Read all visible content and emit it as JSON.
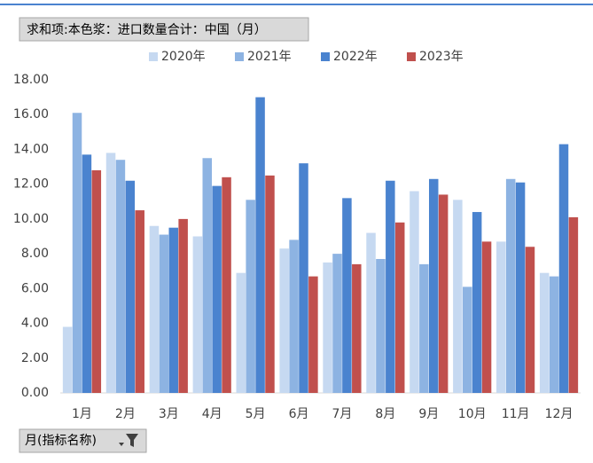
{
  "pivot_buttons": {
    "value_field": "求和项:本色浆：进口数量合计：中国（月）",
    "axis_field": "月(指标名称)"
  },
  "chart_data": {
    "type": "bar",
    "categories": [
      "1月",
      "2月",
      "3月",
      "4月",
      "5月",
      "6月",
      "7月",
      "8月",
      "9月",
      "10月",
      "11月",
      "12月"
    ],
    "series": [
      {
        "name": "2020年",
        "color": "#c6d9f1",
        "values": [
          3.8,
          13.8,
          9.6,
          9.0,
          6.9,
          8.3,
          7.5,
          9.2,
          11.6,
          11.1,
          8.7,
          6.9
        ]
      },
      {
        "name": "2021年",
        "color": "#8db3e2",
        "values": [
          16.1,
          13.4,
          9.1,
          13.5,
          11.1,
          8.8,
          8.0,
          7.7,
          7.4,
          6.1,
          12.3,
          6.7
        ]
      },
      {
        "name": "2022年",
        "color": "#4a83cf",
        "values": [
          13.7,
          12.2,
          9.5,
          11.9,
          17.0,
          13.2,
          11.2,
          12.2,
          12.3,
          10.4,
          12.1,
          14.3
        ]
      },
      {
        "name": "2023年",
        "color": "#c0504d",
        "values": [
          12.8,
          10.5,
          10.0,
          12.4,
          12.5,
          6.7,
          7.4,
          9.8,
          11.4,
          8.7,
          8.4,
          10.1
        ]
      }
    ],
    "ylim": [
      0,
      18
    ],
    "yticks": [
      {
        "value": 0,
        "label": "0.00"
      },
      {
        "value": 2,
        "label": "2.00"
      },
      {
        "value": 4,
        "label": "4.00"
      },
      {
        "value": 6,
        "label": "6.00"
      },
      {
        "value": 8,
        "label": "8.00"
      },
      {
        "value": 10,
        "label": "10.00"
      },
      {
        "value": 12,
        "label": "12.00"
      },
      {
        "value": 14,
        "label": "14.00"
      },
      {
        "value": 16,
        "label": "16.00"
      },
      {
        "value": 18,
        "label": "18.00"
      }
    ],
    "grid": false,
    "legend": "top"
  }
}
